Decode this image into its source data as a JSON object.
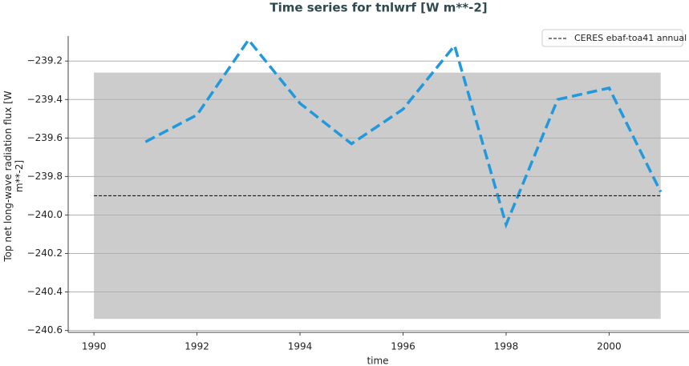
{
  "chart_data": {
    "type": "line",
    "title": "Time series for tnlwrf [W m**-2]",
    "xlabel": "time",
    "ylabel": "Top net long-wave radiation flux [W m**-2]",
    "xlim": [
      1989.5,
      2001.55
    ],
    "ylim": [
      -240.61,
      -239.07
    ],
    "xticks": [
      1990,
      1992,
      1994,
      1996,
      1998,
      2000
    ],
    "yticks": [
      {
        "value": -239.2,
        "label": "−239.2"
      },
      {
        "value": -239.4,
        "label": "−239.4"
      },
      {
        "value": -239.6,
        "label": "−239.6"
      },
      {
        "value": -239.8,
        "label": "−239.8"
      },
      {
        "value": -240.0,
        "label": "−240.0"
      },
      {
        "value": -240.2,
        "label": "−240.2"
      },
      {
        "value": -240.4,
        "label": "−240.4"
      },
      {
        "value": -240.6,
        "label": "−240.6"
      }
    ],
    "grid": true,
    "legend": "upper right",
    "band": {
      "x": [
        1990,
        2001
      ],
      "y": [
        -240.54,
        -239.26
      ],
      "color": "#cccccc"
    },
    "series": [
      {
        "color": "#2299dd",
        "dash": "dashed",
        "x": [
          1991,
          1992,
          1993,
          1994,
          1995,
          1996,
          1997,
          1998,
          1999,
          2000,
          2001
        ],
        "values": [
          -239.62,
          -239.48,
          -239.09,
          -239.42,
          -239.63,
          -239.45,
          -239.12,
          -240.05,
          -239.4,
          -239.34,
          -239.88
        ]
      },
      {
        "name": "CERES ebaf-toa41 annual",
        "color": "#000000",
        "dash": "dashed",
        "x": [
          1990,
          2001
        ],
        "values": [
          -239.9,
          -239.9
        ]
      }
    ]
  }
}
